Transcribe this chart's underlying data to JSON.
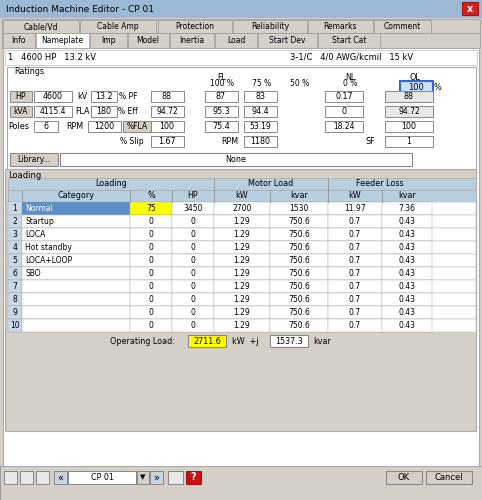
{
  "title": "Induction Machine Editor - CP 01",
  "bg_color": "#dce6f0",
  "win_bg": "#d4d0c8",
  "white": "#ffffff",
  "blue_tab": "#4169aa",
  "yellow_highlight": "#ffff00",
  "gray_btn": "#d4d0c8",
  "blue_row": "#6699cc",
  "header_blue": "#b8cfe0",
  "title_bg": "#a0b8d0",
  "tab_row1": [
    "Cable/Vd",
    "Cable Amp",
    "Protection",
    "Reliability",
    "Remarks",
    "Comment"
  ],
  "tab_row2": [
    "Info",
    "Nameplate",
    "Imp",
    "Model",
    "Inertia",
    "Load",
    "Start Dev",
    "Start Cat"
  ],
  "active_tab": "Nameplate",
  "table_rows": [
    [
      "1",
      "Normal",
      "75",
      "3450",
      "2700",
      "1530",
      "11.97",
      "7.36"
    ],
    [
      "2",
      "Startup",
      "0",
      "0",
      "1.29",
      "750.6",
      "0.7",
      "0.43"
    ],
    [
      "3",
      "LOCA",
      "0",
      "0",
      "1.29",
      "750.6",
      "0.7",
      "0.43"
    ],
    [
      "4",
      "Hot standby",
      "0",
      "0",
      "1.29",
      "750.6",
      "0.7",
      "0.43"
    ],
    [
      "5",
      "LOCA+LOOP",
      "0",
      "0",
      "1.29",
      "750.6",
      "0.7",
      "0.43"
    ],
    [
      "6",
      "SBO",
      "0",
      "0",
      "1.29",
      "750.6",
      "0.7",
      "0.43"
    ],
    [
      "7",
      "",
      "0",
      "0",
      "1.29",
      "750.6",
      "0.7",
      "0.43"
    ],
    [
      "8",
      "",
      "0",
      "0",
      "1.29",
      "750.6",
      "0.7",
      "0.43"
    ],
    [
      "9",
      "",
      "0",
      "0",
      "1.29",
      "750.6",
      "0.7",
      "0.43"
    ],
    [
      "10",
      "",
      "0",
      "0",
      "1.29",
      "750.6",
      "0.7",
      "0.43"
    ]
  ],
  "op_load_kw": "2711.6",
  "op_load_kvar": "1537.3",
  "bottom_dropdown": "CP 01",
  "ok_btn": "OK",
  "cancel_btn": "Cancel"
}
